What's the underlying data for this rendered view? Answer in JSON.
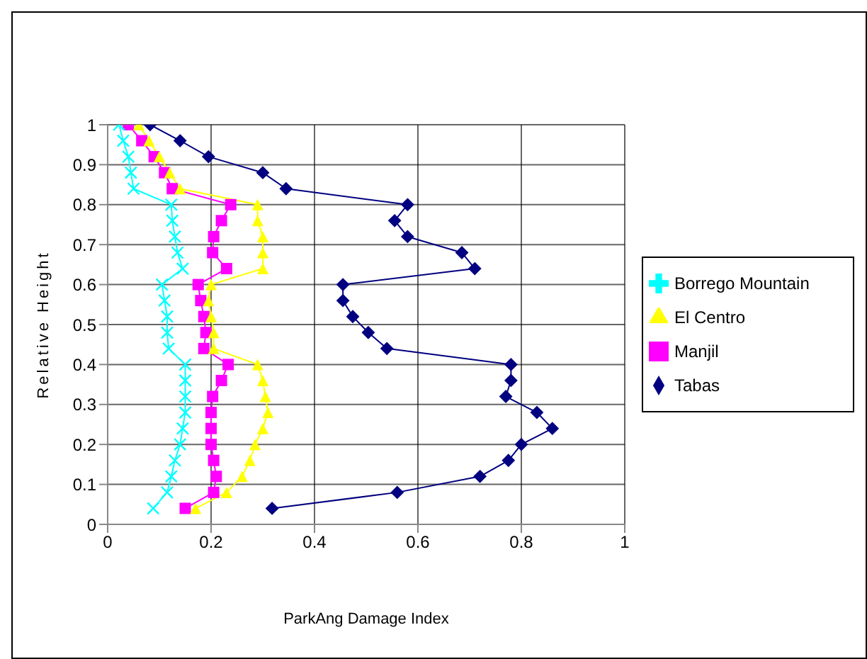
{
  "chart_data": {
    "type": "line",
    "xlabel": "ParkAng Damage Index",
    "ylabel": "Relative Height",
    "xlim": [
      0,
      1
    ],
    "xticks": [
      0,
      0.2,
      0.4,
      0.6,
      0.8,
      1
    ],
    "ylim": [
      0,
      1
    ],
    "yticks": [
      0,
      0.1,
      0.2,
      0.3,
      0.4,
      0.5,
      0.6,
      0.7,
      0.8,
      0.9,
      1
    ],
    "grid": true,
    "legend": "right",
    "series": [
      {
        "name": "Tabas",
        "color": "#000080",
        "marker": "diamond",
        "x": [
          0.082,
          0.14,
          0.195,
          0.3,
          0.345,
          0.58,
          0.555,
          0.58,
          0.685,
          0.71,
          0.455,
          0.455,
          0.474,
          0.504,
          0.54,
          0.78,
          0.78,
          0.77,
          0.83,
          0.86,
          0.8,
          0.775,
          0.72,
          0.56,
          0.318
        ],
        "values": [
          1,
          0.96,
          0.92,
          0.88,
          0.84,
          0.8,
          0.76,
          0.72,
          0.68,
          0.64,
          0.6,
          0.56,
          0.52,
          0.48,
          0.44,
          0.4,
          0.36,
          0.32,
          0.28,
          0.24,
          0.2,
          0.16,
          0.12,
          0.08,
          0.04
        ]
      },
      {
        "name": "Manjil",
        "color": "#ff00ff",
        "marker": "square",
        "x": [
          0.04,
          0.066,
          0.09,
          0.11,
          0.125,
          0.238,
          0.22,
          0.205,
          0.203,
          0.23,
          0.175,
          0.18,
          0.186,
          0.19,
          0.186,
          0.233,
          0.22,
          0.203,
          0.2,
          0.2,
          0.2,
          0.205,
          0.21,
          0.205,
          0.15
        ],
        "values": [
          1,
          0.96,
          0.92,
          0.88,
          0.84,
          0.8,
          0.76,
          0.72,
          0.68,
          0.64,
          0.6,
          0.56,
          0.52,
          0.48,
          0.44,
          0.4,
          0.36,
          0.32,
          0.28,
          0.24,
          0.2,
          0.16,
          0.12,
          0.08,
          0.04
        ]
      },
      {
        "name": "El Centro",
        "color": "#ffff00",
        "marker": "triangle",
        "x": [
          0.06,
          0.08,
          0.1,
          0.12,
          0.14,
          0.29,
          0.29,
          0.3,
          0.3,
          0.3,
          0.2,
          0.195,
          0.2,
          0.205,
          0.205,
          0.29,
          0.3,
          0.305,
          0.31,
          0.3,
          0.285,
          0.275,
          0.26,
          0.23,
          0.17
        ],
        "values": [
          1,
          0.96,
          0.92,
          0.88,
          0.84,
          0.8,
          0.76,
          0.72,
          0.68,
          0.64,
          0.6,
          0.56,
          0.52,
          0.48,
          0.44,
          0.4,
          0.36,
          0.32,
          0.28,
          0.24,
          0.2,
          0.16,
          0.12,
          0.08,
          0.04
        ]
      },
      {
        "name": "Borrego  Mountain",
        "color": "#00ffff",
        "marker": "cross",
        "x": [
          0.022,
          0.03,
          0.04,
          0.045,
          0.05,
          0.123,
          0.125,
          0.13,
          0.135,
          0.145,
          0.105,
          0.11,
          0.115,
          0.115,
          0.118,
          0.15,
          0.15,
          0.15,
          0.15,
          0.145,
          0.14,
          0.13,
          0.123,
          0.115,
          0.088
        ],
        "values": [
          1,
          0.96,
          0.92,
          0.88,
          0.84,
          0.8,
          0.76,
          0.72,
          0.68,
          0.64,
          0.6,
          0.56,
          0.52,
          0.48,
          0.44,
          0.4,
          0.36,
          0.32,
          0.28,
          0.24,
          0.2,
          0.16,
          0.12,
          0.08,
          0.04
        ]
      }
    ]
  }
}
